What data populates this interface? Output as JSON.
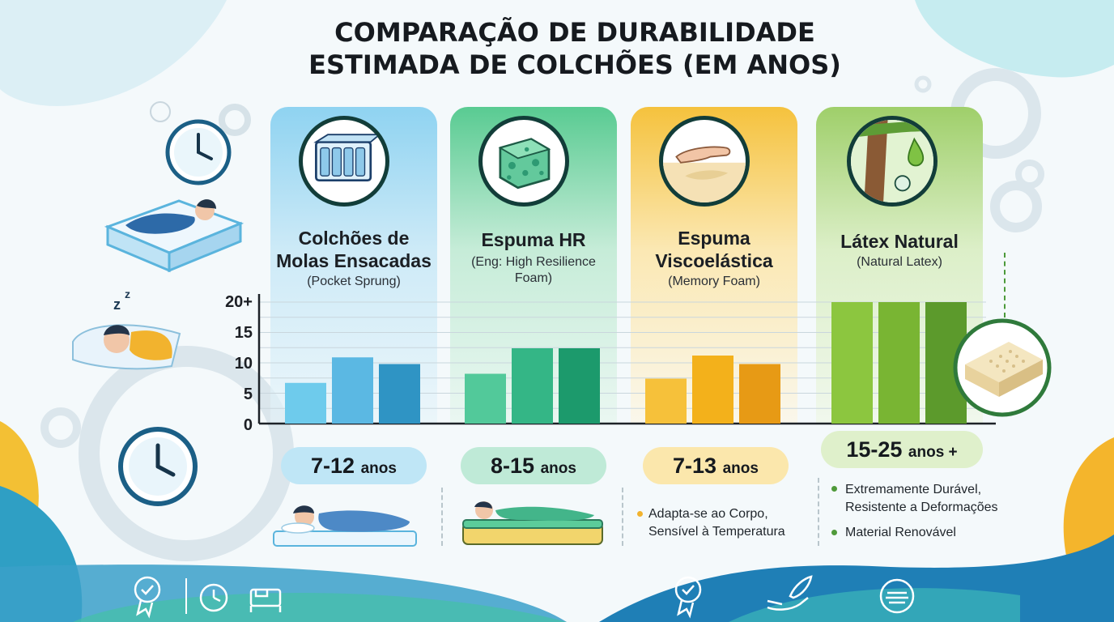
{
  "title_lines": [
    "COMPARAÇÃO DE DURABILIDADE",
    "ESTIMADA DE COLCHÕES (EM ANOS)"
  ],
  "panels": [
    {
      "name_lines": [
        "Colchões de",
        "Molas Ensacadas"
      ],
      "sub_lines": [
        "(Pocket Sprung)"
      ],
      "range": "7-12",
      "unit": "anos",
      "icon": "pocket-spring-icon"
    },
    {
      "name_lines": [
        "Espuma HR"
      ],
      "sub_lines": [
        "(Eng: High Resilience",
        "Foam)"
      ],
      "range": "8-15",
      "unit": "anos",
      "icon": "foam-block-icon"
    },
    {
      "name_lines": [
        "Espuma",
        "Viscoelástica"
      ],
      "sub_lines": [
        "(Memory Foam)"
      ],
      "range": "7-13",
      "unit": "anos",
      "icon": "hand-imprint-icon"
    },
    {
      "name_lines": [
        "Látex Natural"
      ],
      "sub_lines": [
        "(Natural Latex)"
      ],
      "range": "15-25",
      "unit": "anos +",
      "icon": "rubber-tree-icon"
    }
  ],
  "notes": {
    "viscoelastica": [
      "Adapta-se ao Corpo,",
      "Sensível à Temperatura"
    ],
    "latex_1": [
      "Extremamente Durável,",
      "Resistente a Deformações"
    ],
    "latex_2": [
      "Material Renovável"
    ]
  },
  "colors": {
    "blue": [
      "#6ecbec",
      "#5bb8e3",
      "#2f94c4"
    ],
    "green": [
      "#52c99a",
      "#34b686",
      "#1c9a6c"
    ],
    "yellow": [
      "#f6c13a",
      "#f3b11b",
      "#e79a15"
    ],
    "olive": [
      "#8cc63f",
      "#79b533",
      "#5c9a2c"
    ]
  },
  "chart_data": {
    "type": "bar",
    "title": "COMPARAÇÃO DE DURABILIDADE ESTIMADA DE COLCHÕES (EM ANOS)",
    "ylim": [
      0,
      20
    ],
    "yticks": [
      "0",
      "5",
      "10",
      "15",
      "20+"
    ],
    "grid": true,
    "groups": [
      {
        "name": "Colchões de Molas Ensacadas",
        "range": "7-12 anos",
        "values": [
          6.7,
          10.9,
          9.8
        ]
      },
      {
        "name": "Espuma HR",
        "range": "8-15 anos",
        "values": [
          8.2,
          12.4,
          12.4
        ]
      },
      {
        "name": "Espuma Viscoelástica",
        "range": "7-13 anos",
        "values": [
          7.4,
          11.2,
          9.8
        ]
      },
      {
        "name": "Látex Natural",
        "range": "15-25 anos +",
        "values": [
          20,
          20,
          20
        ]
      }
    ]
  }
}
